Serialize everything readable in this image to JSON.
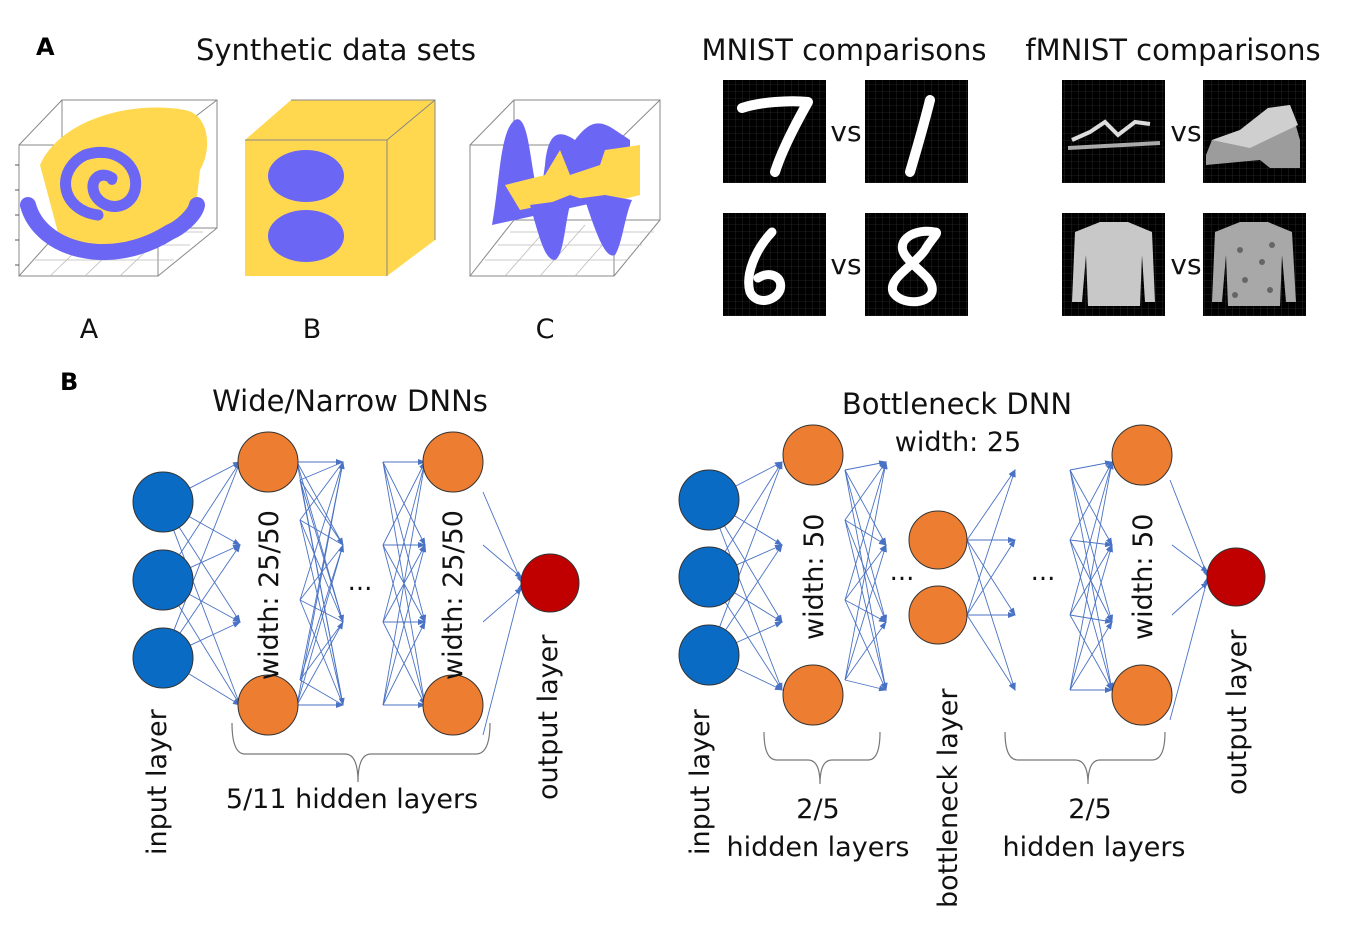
{
  "panel_a": {
    "letter": "A",
    "synthetic_title": "Synthetic data sets",
    "dataset_labels": [
      "A",
      "B",
      "C"
    ],
    "mnist_title": "MNIST comparisons",
    "fmnist_title": "fMNIST comparisons",
    "vs_label": "vs"
  },
  "panel_b": {
    "letter": "B",
    "wide_title": "Wide/Narrow DNNs",
    "wide_width_label": "width: 25/50",
    "wide_hidden_label": "5/11 hidden layers",
    "bottleneck_title": "Bottleneck DNN",
    "bottleneck_width_top": "width: 25",
    "bottleneck_width_label": "width: 50",
    "bottleneck_layer_label": "bottleneck layer",
    "bottleneck_hidden_count": "2/5",
    "bottleneck_hidden_text": "hidden layers",
    "input_label": "input layer",
    "output_label": "output layer",
    "ellipsis": "..."
  },
  "colors": {
    "yellow": "#FFD84F",
    "purple": "#6B66F4",
    "input_node": "#0A6BC4",
    "hidden_node": "#ED7D31",
    "output_node": "#C00000",
    "edge": "#4A72C4"
  }
}
